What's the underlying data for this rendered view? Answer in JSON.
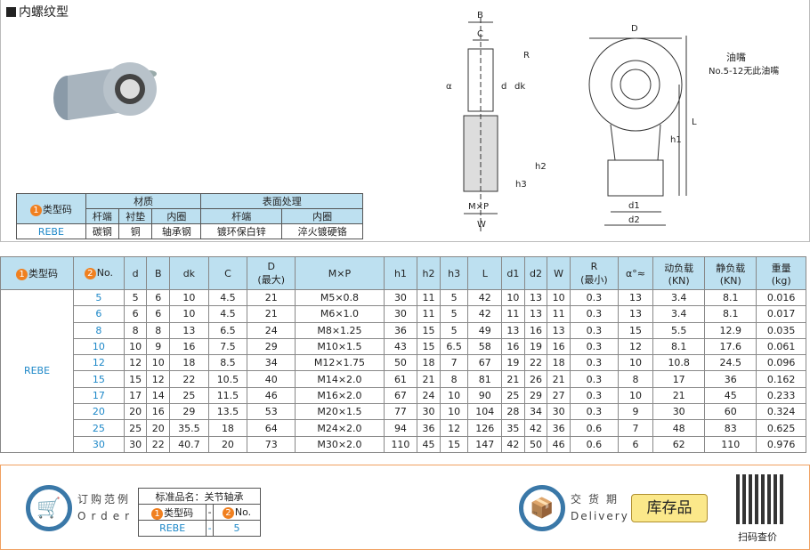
{
  "title": "内螺纹型",
  "drawing_labels": {
    "B": "B",
    "C": "C",
    "R": "R",
    "alpha": "α",
    "d": "d",
    "dk": "dk",
    "h2": "h2",
    "h3": "h3",
    "mxp": "M×P",
    "W": "W",
    "D": "D",
    "oil": "油嘴",
    "oil_note": "No.5-12无此油嘴",
    "L": "L",
    "h1": "h1",
    "d1": "d1",
    "d2": "d2"
  },
  "material_table": {
    "type_label": "类型码",
    "material": "材质",
    "surface": "表面处理",
    "sub": [
      "杆端",
      "衬垫",
      "内圈",
      "杆端",
      "内圈"
    ],
    "row": [
      "REBE",
      "碳钢",
      "铜",
      "轴承钢",
      "镀环保白锌",
      "淬火镀硬铬"
    ]
  },
  "spec_table": {
    "headers": [
      "类型码",
      "No.",
      "d",
      "B",
      "dk",
      "C",
      "D\n(最大)",
      "M×P",
      "h1",
      "h2",
      "h3",
      "L",
      "d1",
      "d2",
      "W",
      "R\n(最小)",
      "α°≈",
      "动负载\n(KN)",
      "静负载\n(KN)",
      "重量\n(kg)"
    ],
    "type": "REBE",
    "rows": [
      [
        "5",
        "5",
        "6",
        "10",
        "4.5",
        "21",
        "M5×0.8",
        "30",
        "11",
        "5",
        "42",
        "10",
        "13",
        "10",
        "0.3",
        "13",
        "3.4",
        "8.1",
        "0.016"
      ],
      [
        "6",
        "6",
        "6",
        "10",
        "4.5",
        "21",
        "M6×1.0",
        "30",
        "11",
        "5",
        "42",
        "11",
        "13",
        "11",
        "0.3",
        "13",
        "3.4",
        "8.1",
        "0.017"
      ],
      [
        "8",
        "8",
        "8",
        "13",
        "6.5",
        "24",
        "M8×1.25",
        "36",
        "15",
        "5",
        "49",
        "13",
        "16",
        "13",
        "0.3",
        "15",
        "5.5",
        "12.9",
        "0.035"
      ],
      [
        "10",
        "10",
        "9",
        "16",
        "7.5",
        "29",
        "M10×1.5",
        "43",
        "15",
        "6.5",
        "58",
        "16",
        "19",
        "16",
        "0.3",
        "12",
        "8.1",
        "17.6",
        "0.061"
      ],
      [
        "12",
        "12",
        "10",
        "18",
        "8.5",
        "34",
        "M12×1.75",
        "50",
        "18",
        "7",
        "67",
        "19",
        "22",
        "18",
        "0.3",
        "10",
        "10.8",
        "24.5",
        "0.096"
      ],
      [
        "15",
        "15",
        "12",
        "22",
        "10.5",
        "40",
        "M14×2.0",
        "61",
        "21",
        "8",
        "81",
        "21",
        "26",
        "21",
        "0.3",
        "8",
        "17",
        "36",
        "0.162"
      ],
      [
        "17",
        "17",
        "14",
        "25",
        "11.5",
        "46",
        "M16×2.0",
        "67",
        "24",
        "10",
        "90",
        "25",
        "29",
        "27",
        "0.3",
        "10",
        "21",
        "45",
        "0.233"
      ],
      [
        "20",
        "20",
        "16",
        "29",
        "13.5",
        "53",
        "M20×1.5",
        "77",
        "30",
        "10",
        "104",
        "28",
        "34",
        "30",
        "0.3",
        "9",
        "30",
        "60",
        "0.324"
      ],
      [
        "25",
        "25",
        "20",
        "35.5",
        "18",
        "64",
        "M24×2.0",
        "94",
        "36",
        "12",
        "126",
        "35",
        "42",
        "36",
        "0.6",
        "7",
        "48",
        "83",
        "0.625"
      ],
      [
        "30",
        "30",
        "22",
        "40.7",
        "20",
        "73",
        "M30×2.0",
        "110",
        "45",
        "15",
        "147",
        "42",
        "50",
        "46",
        "0.6",
        "6",
        "62",
        "110",
        "0.976"
      ]
    ]
  },
  "order": {
    "title_cn": "订购范例",
    "title_en": "Order",
    "std_name": "标准品名：关节轴承",
    "type_label": "类型码",
    "dash": "-",
    "no_label": "No.",
    "type_value": "REBE",
    "no_value": "5"
  },
  "delivery": {
    "title_cn": "交货期",
    "title_en": "Delivery",
    "stock": "库存品",
    "qr_caption": "扫码查价"
  },
  "colors": {
    "accent_orange": "#f08020",
    "header_blue": "#bde0f0",
    "link_blue": "#1e88c8"
  }
}
